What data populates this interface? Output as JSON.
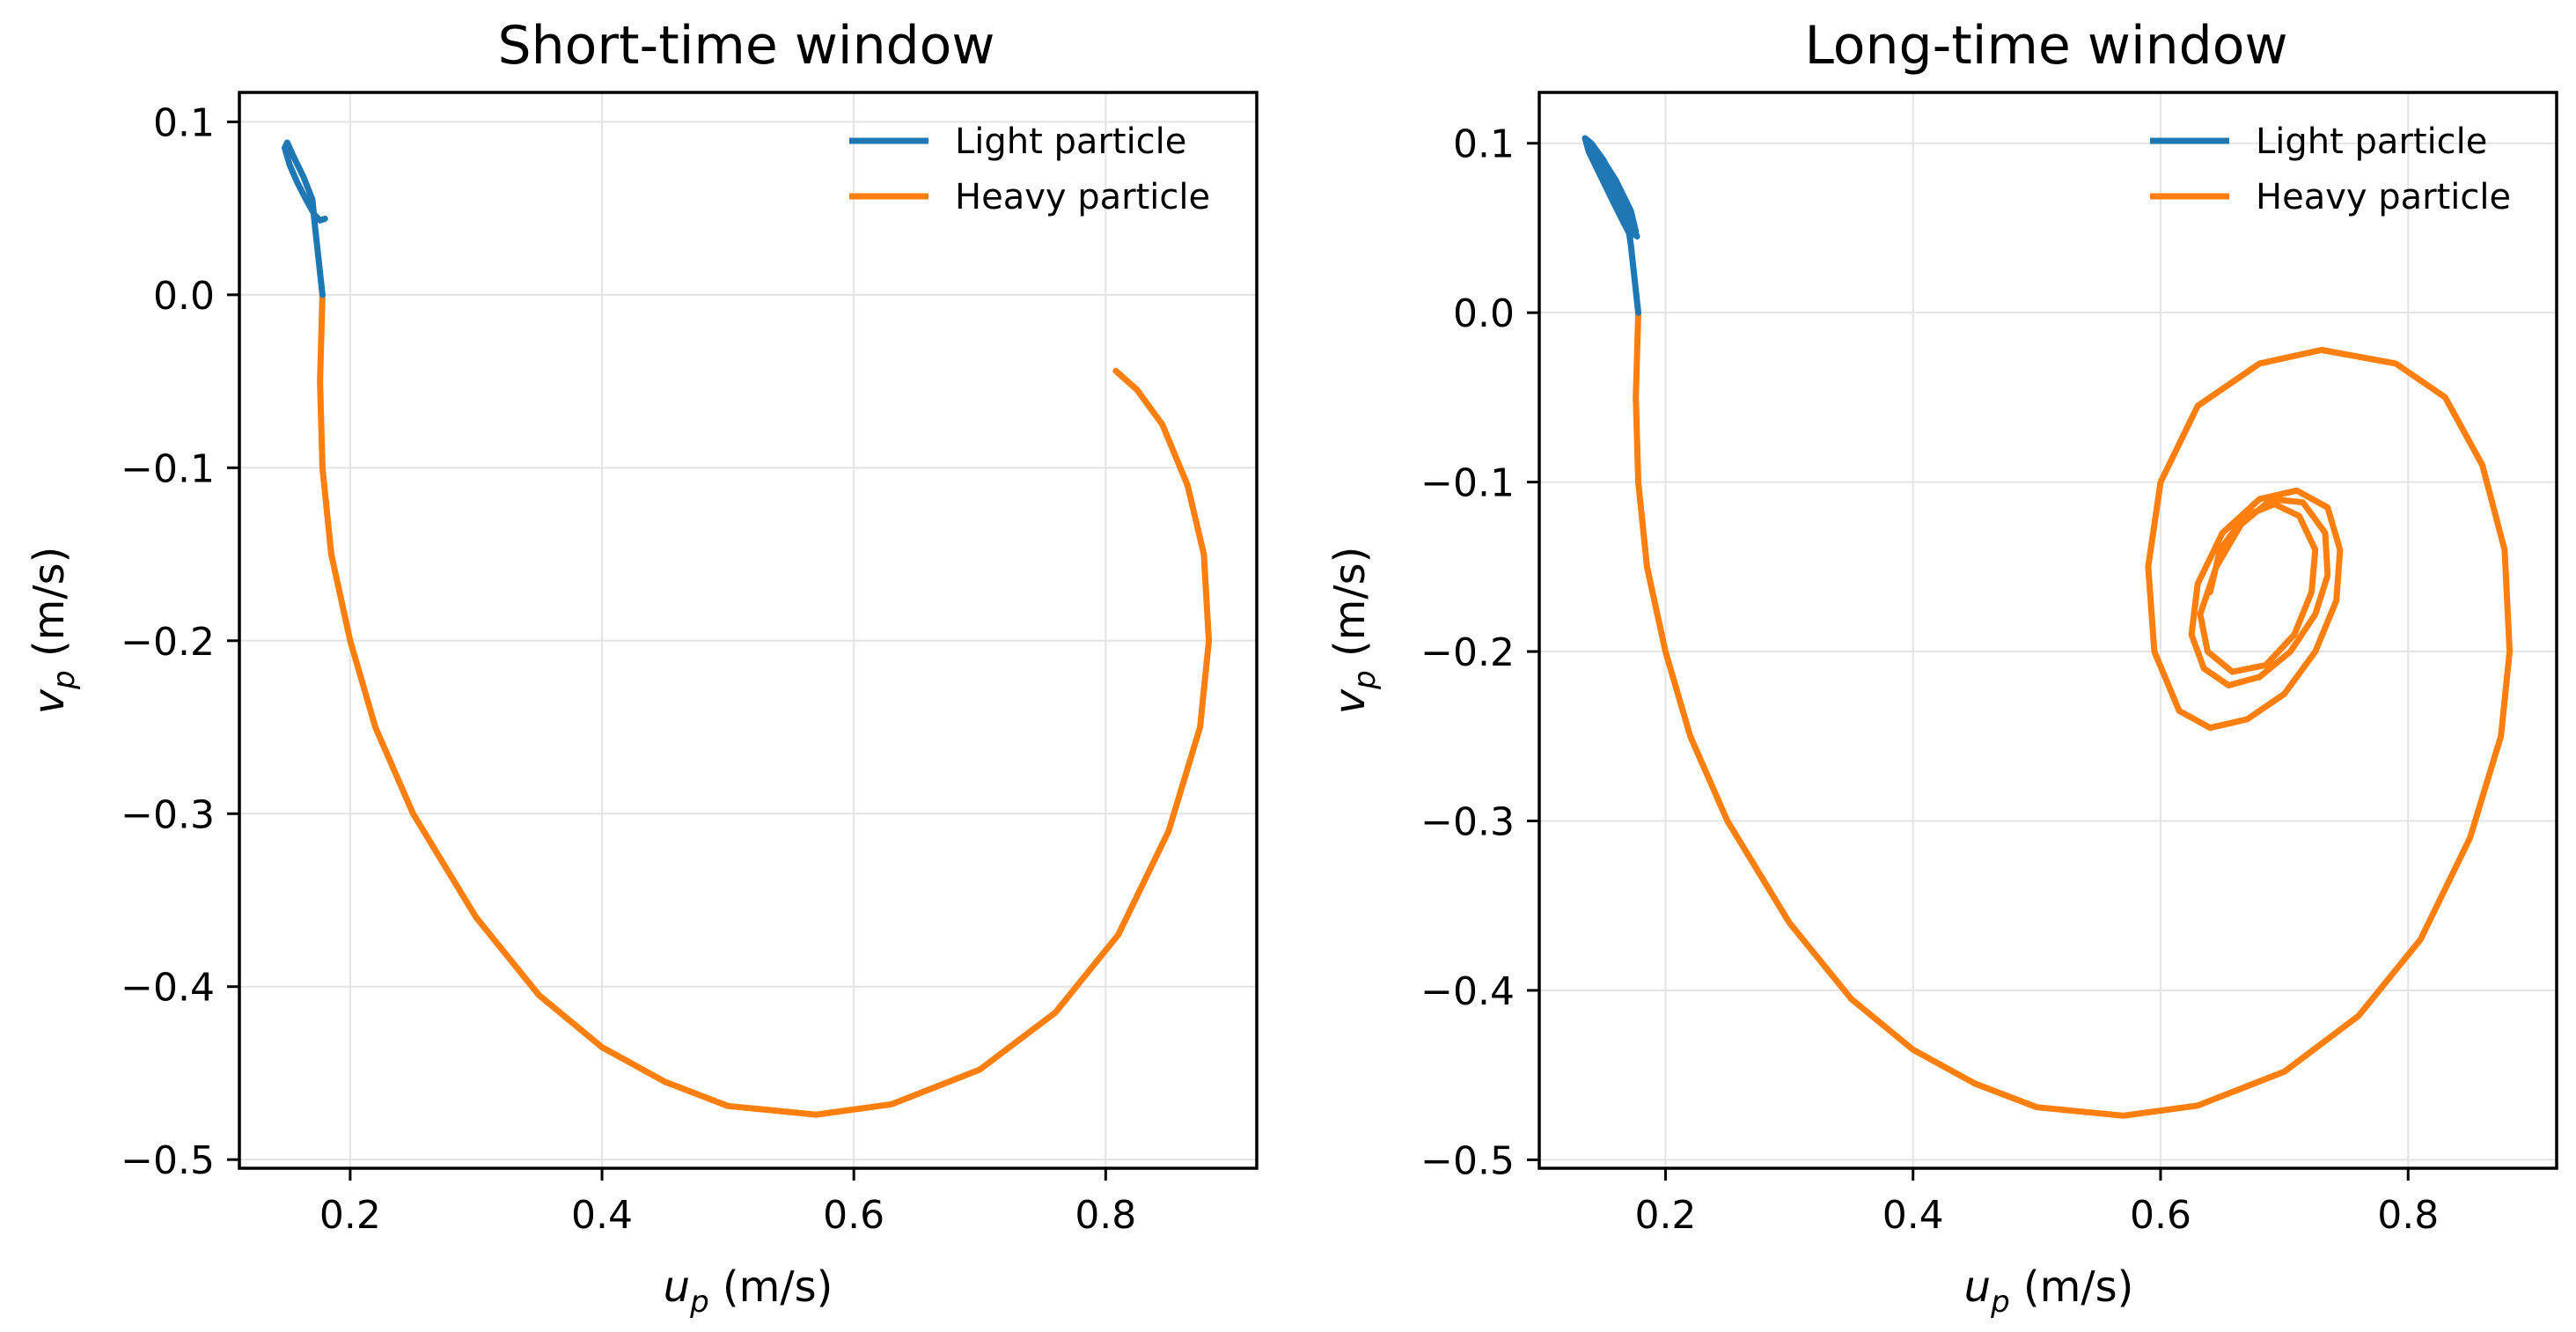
{
  "chart_data": [
    {
      "type": "line",
      "title": "Short-time window",
      "xlabel": "u",
      "xlabel_sub": "p",
      "xlabel_unit": " (m/s)",
      "ylabel": "v",
      "ylabel_sub": "p",
      "ylabel_unit": " (m/s)",
      "xlim": [
        0.112,
        0.92
      ],
      "ylim": [
        -0.505,
        0.117
      ],
      "xticks": [
        0.2,
        0.4,
        0.6,
        0.8
      ],
      "xtick_labels": [
        "0.2",
        "0.4",
        "0.6",
        "0.8"
      ],
      "yticks": [
        0.1,
        0.0,
        -0.1,
        -0.2,
        -0.3,
        -0.4,
        -0.5
      ],
      "ytick_labels": [
        "0.1",
        "0.0",
        "−0.1",
        "−0.2",
        "−0.3",
        "−0.4",
        "−0.5"
      ],
      "grid": true,
      "legend": "top-right",
      "series": [
        {
          "name": "Light particle",
          "color": "#1f77b4",
          "points": [
            [
              0.178,
              0.0
            ],
            [
              0.175,
              0.02
            ],
            [
              0.172,
              0.04
            ],
            [
              0.17,
              0.055
            ],
            [
              0.163,
              0.068
            ],
            [
              0.155,
              0.08
            ],
            [
              0.15,
              0.088
            ],
            [
              0.148,
              0.085
            ],
            [
              0.152,
              0.075
            ],
            [
              0.158,
              0.065
            ],
            [
              0.165,
              0.055
            ],
            [
              0.172,
              0.046
            ],
            [
              0.176,
              0.043
            ],
            [
              0.18,
              0.044
            ]
          ]
        },
        {
          "name": "Heavy particle",
          "color": "#ff7f0e",
          "points": [
            [
              0.178,
              0.0
            ],
            [
              0.176,
              -0.05
            ],
            [
              0.178,
              -0.1
            ],
            [
              0.185,
              -0.15
            ],
            [
              0.2,
              -0.2
            ],
            [
              0.22,
              -0.25
            ],
            [
              0.25,
              -0.3
            ],
            [
              0.3,
              -0.36
            ],
            [
              0.35,
              -0.405
            ],
            [
              0.4,
              -0.435
            ],
            [
              0.45,
              -0.455
            ],
            [
              0.5,
              -0.469
            ],
            [
              0.57,
              -0.474
            ],
            [
              0.63,
              -0.468
            ],
            [
              0.7,
              -0.448
            ],
            [
              0.76,
              -0.415
            ],
            [
              0.81,
              -0.37
            ],
            [
              0.85,
              -0.31
            ],
            [
              0.875,
              -0.25
            ],
            [
              0.882,
              -0.2
            ],
            [
              0.878,
              -0.15
            ],
            [
              0.865,
              -0.11
            ],
            [
              0.845,
              -0.075
            ],
            [
              0.825,
              -0.055
            ],
            [
              0.808,
              -0.044
            ]
          ]
        }
      ]
    },
    {
      "type": "line",
      "title": "Long-time window",
      "xlabel": "u",
      "xlabel_sub": "p",
      "xlabel_unit": " (m/s)",
      "ylabel": "v",
      "ylabel_sub": "p",
      "ylabel_unit": " (m/s)",
      "xlim": [
        0.098,
        0.92
      ],
      "ylim": [
        -0.505,
        0.13
      ],
      "xticks": [
        0.2,
        0.4,
        0.6,
        0.8
      ],
      "xtick_labels": [
        "0.2",
        "0.4",
        "0.6",
        "0.8"
      ],
      "yticks": [
        0.1,
        0.0,
        -0.1,
        -0.2,
        -0.3,
        -0.4,
        -0.5
      ],
      "ytick_labels": [
        "0.1",
        "0.0",
        "−0.1",
        "−0.2",
        "−0.3",
        "−0.4",
        "−0.5"
      ],
      "grid": true,
      "legend": "top-right",
      "series": [
        {
          "name": "Light particle",
          "color": "#1f77b4",
          "points": [
            [
              0.178,
              0.0
            ],
            [
              0.175,
              0.02
            ],
            [
              0.172,
              0.04
            ],
            [
              0.168,
              0.06
            ],
            [
              0.16,
              0.075
            ],
            [
              0.15,
              0.09
            ],
            [
              0.14,
              0.1
            ],
            [
              0.135,
              0.103
            ],
            [
              0.138,
              0.095
            ],
            [
              0.148,
              0.08
            ],
            [
              0.158,
              0.065
            ],
            [
              0.167,
              0.052
            ],
            [
              0.172,
              0.045
            ],
            [
              0.172,
              0.055
            ],
            [
              0.163,
              0.072
            ],
            [
              0.152,
              0.087
            ],
            [
              0.14,
              0.098
            ],
            [
              0.137,
              0.1
            ],
            [
              0.143,
              0.09
            ],
            [
              0.153,
              0.075
            ],
            [
              0.163,
              0.062
            ],
            [
              0.172,
              0.05
            ],
            [
              0.176,
              0.048
            ],
            [
              0.172,
              0.06
            ],
            [
              0.16,
              0.078
            ],
            [
              0.147,
              0.093
            ],
            [
              0.14,
              0.098
            ],
            [
              0.148,
              0.085
            ],
            [
              0.16,
              0.068
            ],
            [
              0.17,
              0.055
            ],
            [
              0.177,
              0.045
            ]
          ]
        },
        {
          "name": "Heavy particle",
          "color": "#ff7f0e",
          "points": [
            [
              0.178,
              0.0
            ],
            [
              0.176,
              -0.05
            ],
            [
              0.178,
              -0.1
            ],
            [
              0.185,
              -0.15
            ],
            [
              0.2,
              -0.2
            ],
            [
              0.22,
              -0.25
            ],
            [
              0.25,
              -0.3
            ],
            [
              0.3,
              -0.36
            ],
            [
              0.35,
              -0.405
            ],
            [
              0.4,
              -0.435
            ],
            [
              0.45,
              -0.455
            ],
            [
              0.5,
              -0.469
            ],
            [
              0.57,
              -0.474
            ],
            [
              0.63,
              -0.468
            ],
            [
              0.7,
              -0.448
            ],
            [
              0.76,
              -0.415
            ],
            [
              0.81,
              -0.37
            ],
            [
              0.85,
              -0.31
            ],
            [
              0.875,
              -0.25
            ],
            [
              0.882,
              -0.2
            ],
            [
              0.878,
              -0.14
            ],
            [
              0.86,
              -0.09
            ],
            [
              0.83,
              -0.05
            ],
            [
              0.79,
              -0.03
            ],
            [
              0.73,
              -0.022
            ],
            [
              0.68,
              -0.03
            ],
            [
              0.63,
              -0.055
            ],
            [
              0.6,
              -0.1
            ],
            [
              0.59,
              -0.15
            ],
            [
              0.595,
              -0.2
            ],
            [
              0.615,
              -0.235
            ],
            [
              0.64,
              -0.245
            ],
            [
              0.67,
              -0.24
            ],
            [
              0.7,
              -0.225
            ],
            [
              0.725,
              -0.2
            ],
            [
              0.742,
              -0.17
            ],
            [
              0.745,
              -0.14
            ],
            [
              0.735,
              -0.115
            ],
            [
              0.71,
              -0.105
            ],
            [
              0.68,
              -0.11
            ],
            [
              0.65,
              -0.13
            ],
            [
              0.63,
              -0.16
            ],
            [
              0.625,
              -0.19
            ],
            [
              0.635,
              -0.21
            ],
            [
              0.655,
              -0.22
            ],
            [
              0.68,
              -0.215
            ],
            [
              0.705,
              -0.2
            ],
            [
              0.725,
              -0.178
            ],
            [
              0.735,
              -0.155
            ],
            [
              0.733,
              -0.13
            ],
            [
              0.715,
              -0.112
            ],
            [
              0.69,
              -0.11
            ],
            [
              0.665,
              -0.125
            ],
            [
              0.645,
              -0.15
            ],
            [
              0.632,
              -0.178
            ],
            [
              0.638,
              -0.2
            ],
            [
              0.658,
              -0.212
            ],
            [
              0.685,
              -0.208
            ],
            [
              0.708,
              -0.19
            ],
            [
              0.722,
              -0.165
            ],
            [
              0.725,
              -0.14
            ],
            [
              0.712,
              -0.12
            ],
            [
              0.692,
              -0.113
            ],
            [
              0.668,
              -0.12
            ],
            [
              0.648,
              -0.14
            ],
            [
              0.64,
              -0.165
            ]
          ]
        }
      ]
    }
  ]
}
